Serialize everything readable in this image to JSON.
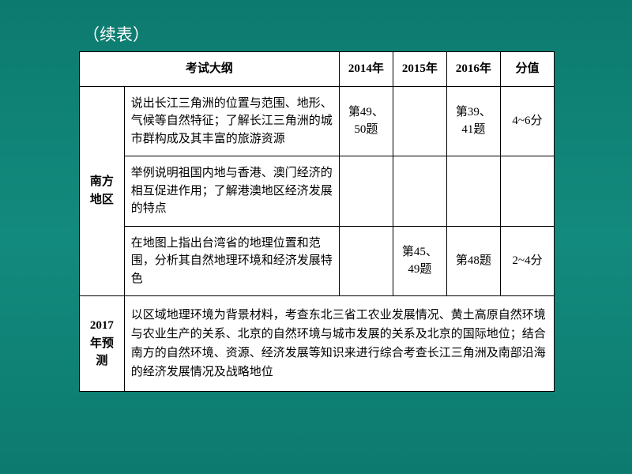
{
  "continue_label": "（续表）",
  "headers": {
    "syllabus": "考试大纲",
    "year2014": "2014年",
    "year2015": "2015年",
    "year2016": "2016年",
    "score": "分值"
  },
  "region": "南方地区",
  "rows": [
    {
      "desc": "说出长江三角洲的位置与范围、地形、气候等自然特征；了解长江三角洲的城市群构成及其丰富的旅游资源",
      "y2014": "第49、50题",
      "y2015": "",
      "y2016": "第39、41题",
      "score": "4~6分"
    },
    {
      "desc": "举例说明祖国内地与香港、澳门经济的相互促进作用；了解港澳地区经济发展的特点",
      "y2014": "",
      "y2015": "",
      "y2016": "",
      "score": ""
    },
    {
      "desc": "在地图上指出台湾省的地理位置和范围，分析其自然地理环境和经济发展特色",
      "y2014": "",
      "y2015": "第45、49题",
      "y2016": "第48题",
      "score": "2~4分"
    }
  ],
  "forecast": {
    "label": "2017年预测",
    "desc": "以区域地理环境为背景材料，考查东北三省工农业发展情况、黄土高原自然环境与农业生产的关系、北京的自然环境与城市发展的关系及北京的国际地位；结合南方的自然环境、资源、经济发展等知识来进行综合考查长江三角洲及南部沿海的经济发展情况及战略地位"
  },
  "colors": {
    "background_start": "#0d7a6f",
    "background_mid": "#128a7d",
    "table_bg": "#ffffff",
    "border": "#000000",
    "text": "#000000",
    "label_text": "#ffffff"
  }
}
